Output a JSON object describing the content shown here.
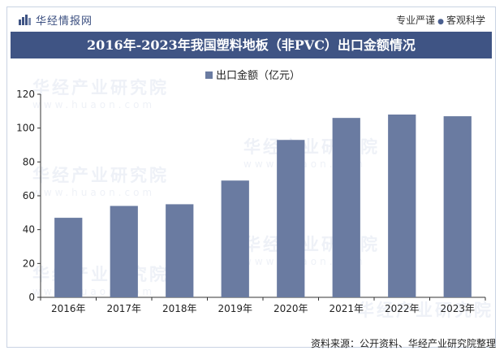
{
  "header": {
    "brand": "华经情报网",
    "tagline_left": "专业严谨",
    "tagline_sep": "●",
    "tagline_right": "客观科学"
  },
  "watermark": {
    "text": "华经产业研究院",
    "url": "www.huaon.com"
  },
  "footer": {
    "source": "资料来源：公开资料、华经产业研究院整理"
  },
  "colors": {
    "bar": "#6a7ba1",
    "title_bg": "#3f5484",
    "axis": "#333333"
  },
  "chart_data": {
    "type": "bar",
    "title": "2016年-2023年我国塑料地板（非PVC）出口金额情况",
    "categories": [
      "2016年",
      "2017年",
      "2018年",
      "2019年",
      "2020年",
      "2021年",
      "2022年",
      "2023年"
    ],
    "series": [
      {
        "name": "出口金额（亿元）",
        "values": [
          47,
          54,
          55,
          69,
          93,
          106,
          108,
          107
        ]
      }
    ],
    "ylim": [
      0,
      120
    ],
    "yticks": [
      0,
      20,
      40,
      60,
      80,
      100,
      120
    ],
    "xlabel": "",
    "ylabel": "",
    "legend": "top-center",
    "grid": false
  }
}
